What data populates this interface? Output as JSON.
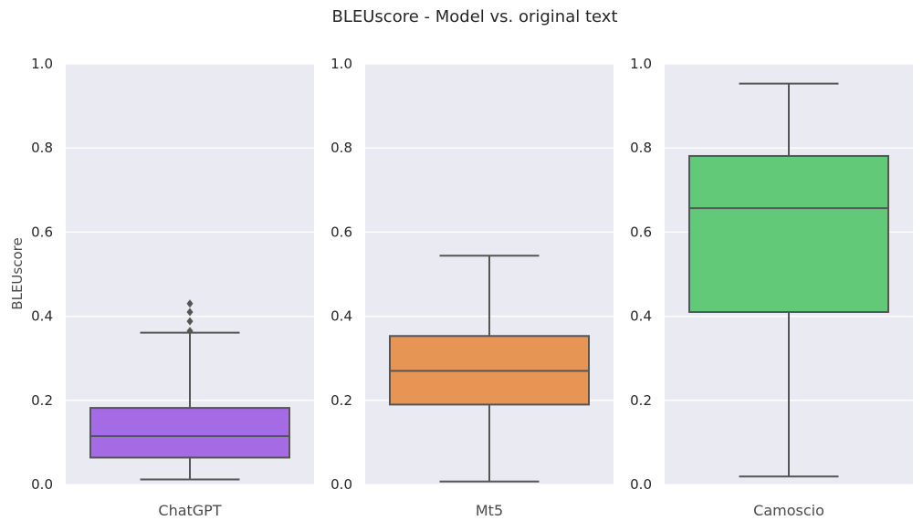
{
  "chart_data": {
    "type": "box",
    "title": "BLEUscore - Model vs. original text",
    "ylabel": "BLEUscore",
    "ylim": [
      0,
      1
    ],
    "yticks": [
      0.0,
      0.2,
      0.4,
      0.6,
      0.8,
      1.0
    ],
    "ytick_labels": [
      "0.0",
      "0.2",
      "0.4",
      "0.6",
      "0.8",
      "1.0"
    ],
    "grid": true,
    "panels": [
      {
        "category": "ChatGPT",
        "color": "#a56be4",
        "whisker_low": 0.012,
        "q1": 0.064,
        "median": 0.115,
        "q3": 0.182,
        "whisker_high": 0.361,
        "outliers": [
          0.365,
          0.388,
          0.41,
          0.43
        ]
      },
      {
        "category": "Mt5",
        "color": "#e69555",
        "whisker_low": 0.007,
        "q1": 0.19,
        "median": 0.27,
        "q3": 0.353,
        "whisker_high": 0.544,
        "outliers": []
      },
      {
        "category": "Camoscio",
        "color": "#61c978",
        "whisker_low": 0.019,
        "q1": 0.41,
        "median": 0.657,
        "q3": 0.781,
        "whisker_high": 0.953,
        "outliers": []
      }
    ]
  }
}
